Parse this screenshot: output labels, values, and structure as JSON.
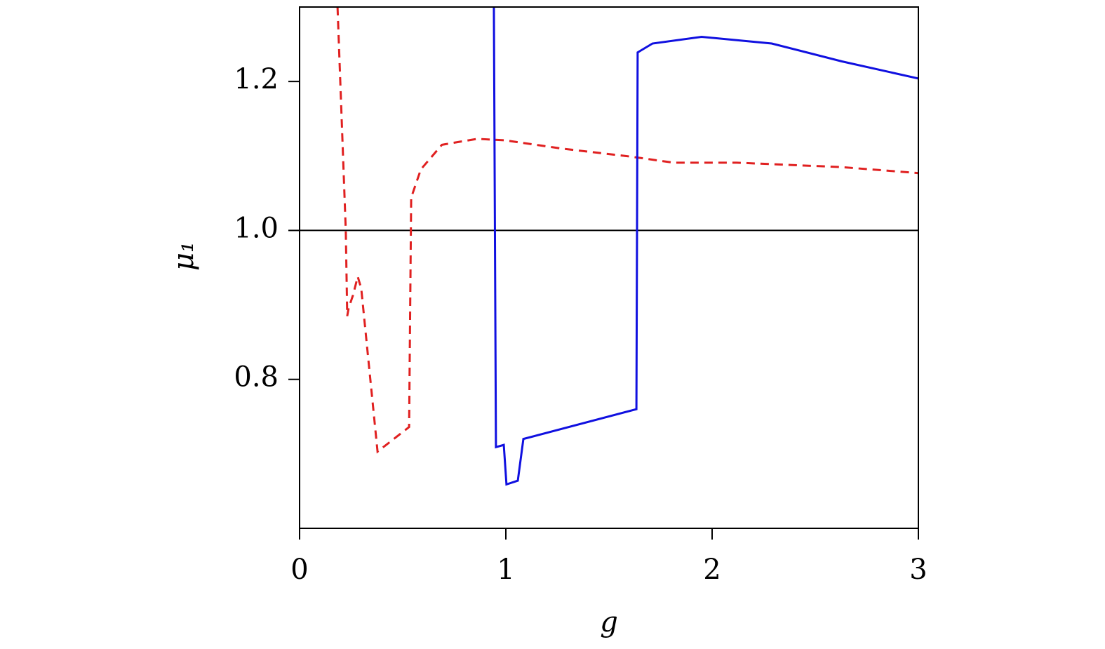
{
  "chart_data": {
    "type": "line",
    "xlabel": "g",
    "ylabel": "μ₁",
    "xlim": [
      0,
      3
    ],
    "ylim": [
      0.6,
      1.3
    ],
    "xticks": [
      0,
      1,
      2,
      3
    ],
    "yticks": [
      0.8,
      {
        "value": 1,
        "label": "1.0"
      },
      1.2
    ],
    "hline": 1,
    "series": [
      {
        "color": "#e02020",
        "dashed": true,
        "x": [
          0.184,
          0.224,
          0.231,
          0.238,
          0.259,
          0.282,
          0.299,
          0.378,
          0.531,
          0.541,
          0.588,
          0.69,
          0.861,
          0.997,
          1.269,
          1.609,
          1.813,
          2.119,
          2.629,
          3.0
        ],
        "values": [
          1.3,
          1.0,
          0.885,
          0.896,
          0.913,
          0.938,
          0.922,
          0.703,
          0.736,
          1.044,
          1.082,
          1.115,
          1.123,
          1.121,
          1.11,
          1.099,
          1.091,
          1.091,
          1.085,
          1.077
        ]
      },
      {
        "color": "#1010e0",
        "dashed": false,
        "x": [
          0.942,
          0.952,
          0.99,
          1.003,
          1.058,
          1.085,
          1.633,
          1.639,
          1.711,
          1.949,
          2.289,
          2.629,
          3.0
        ],
        "values": [
          1.3,
          0.709,
          0.712,
          0.659,
          0.664,
          0.72,
          0.76,
          1.239,
          1.251,
          1.26,
          1.251,
          1.227,
          1.204
        ]
      }
    ]
  }
}
